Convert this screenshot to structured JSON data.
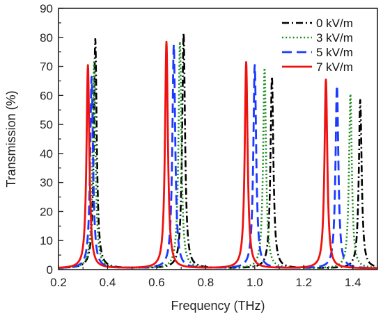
{
  "chart_data": {
    "type": "line",
    "title": "",
    "xlabel": "Frequency (THz)",
    "ylabel": "Transmission (%)",
    "xlim": [
      0.2,
      1.5
    ],
    "ylim": [
      0,
      90
    ],
    "x_ticks": [
      0.2,
      0.4,
      0.6,
      0.8,
      1.0,
      1.2,
      1.4
    ],
    "x_tick_labels": [
      "0.2",
      "0.4",
      "0.6",
      "0.8",
      "1.0",
      "1.2",
      "1.4"
    ],
    "y_ticks": [
      0,
      10,
      20,
      30,
      40,
      50,
      60,
      70,
      80,
      90
    ],
    "y_tick_labels": [
      "0",
      "10",
      "20",
      "30",
      "40",
      "50",
      "60",
      "70",
      "80",
      "90"
    ],
    "grid": false,
    "legend_position": "top-right",
    "series": [
      {
        "name": "0 kV/m",
        "color": "#000000",
        "dash": "dash-dot",
        "peaks": [
          {
            "x": 0.35,
            "y": 79
          },
          {
            "x": 0.71,
            "y": 81
          },
          {
            "x": 1.07,
            "y": 66
          },
          {
            "x": 1.43,
            "y": 58
          }
        ]
      },
      {
        "name": "3 kV/m",
        "color": "#1a8a1a",
        "dash": "dotted",
        "peaks": [
          {
            "x": 0.345,
            "y": 71
          },
          {
            "x": 0.695,
            "y": 78
          },
          {
            "x": 1.04,
            "y": 69
          },
          {
            "x": 1.39,
            "y": 60
          }
        ]
      },
      {
        "name": "5 kV/m",
        "color": "#1a3aff",
        "dash": "dashed",
        "peaks": [
          {
            "x": 0.335,
            "y": 66
          },
          {
            "x": 0.67,
            "y": 77
          },
          {
            "x": 1.0,
            "y": 70
          },
          {
            "x": 1.335,
            "y": 63
          }
        ]
      },
      {
        "name": "7 kV/m",
        "color": "#ee1111",
        "dash": "solid",
        "peaks": [
          {
            "x": 0.32,
            "y": 70
          },
          {
            "x": 0.64,
            "y": 78
          },
          {
            "x": 0.965,
            "y": 71
          },
          {
            "x": 1.29,
            "y": 65
          }
        ]
      }
    ]
  }
}
